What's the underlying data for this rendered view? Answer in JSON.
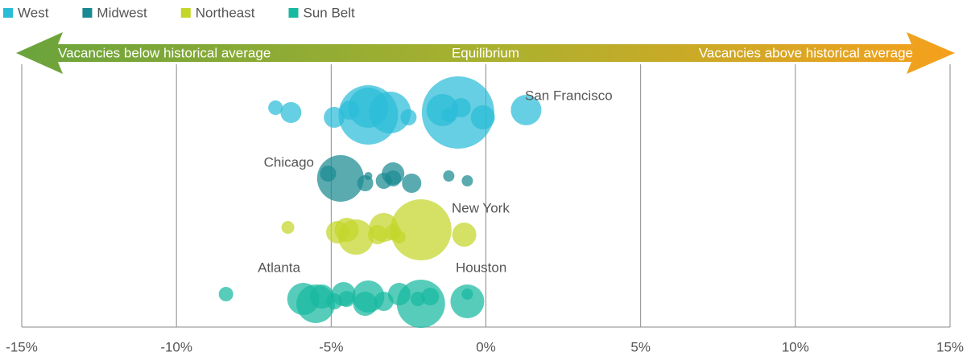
{
  "chart_data": {
    "type": "bubble",
    "arrow_labels": [
      "Vacancies below historical average",
      "Equilibrium",
      "Vacancies above historical average"
    ],
    "annotations": [
      "San Francisco",
      "Chicago",
      "New York",
      "Atlanta",
      "Houston"
    ],
    "xlim": [
      -15,
      15
    ],
    "xticks": [
      {
        "value": -15,
        "label": "-15%"
      },
      {
        "value": -10,
        "label": "-10%"
      },
      {
        "value": -5,
        "label": "-5%"
      },
      {
        "value": 0,
        "label": "0%"
      },
      {
        "value": 5,
        "label": "5%"
      },
      {
        "value": 10,
        "label": "10%"
      },
      {
        "value": 15,
        "label": "15%"
      }
    ],
    "grid": true,
    "legend": "top-left",
    "series": [
      {
        "name": "West",
        "color": "#2bbcd8",
        "x": [
          -6.8,
          -6.3,
          -4.9,
          -4.4,
          -3.8,
          -3.8,
          -3.1,
          -2.5,
          -1.4,
          -1.2,
          -0.8,
          -0.9,
          -0.1,
          1.3
        ],
        "sizes": [
          9,
          13,
          13,
          12,
          37,
          25,
          26,
          10,
          20,
          9,
          12,
          45,
          15,
          19
        ]
      },
      {
        "name": "Midwest",
        "color": "#1a8a92",
        "x": [
          -5.1,
          -4.7,
          -3.9,
          -3.8,
          -3.3,
          -3.0,
          -3.0,
          -2.4,
          -1.2,
          -0.6
        ],
        "sizes": [
          10,
          29,
          10,
          5,
          10,
          14,
          10,
          12,
          7,
          7
        ]
      },
      {
        "name": "Northeast",
        "color": "#c4d62a",
        "x": [
          -6.4,
          -4.8,
          -4.2,
          -4.5,
          -3.5,
          -3.3,
          -3.0,
          -2.8,
          -2.1,
          -0.7
        ],
        "sizes": [
          8,
          14,
          22,
          15,
          12,
          18,
          10,
          8,
          38,
          15
        ]
      },
      {
        "name": "Sun Belt",
        "color": "#17b9a0",
        "x": [
          -8.4,
          -5.9,
          -5.5,
          -5.3,
          -4.9,
          -4.6,
          -4.5,
          -3.9,
          -3.8,
          -3.3,
          -2.8,
          -2.2,
          -2.1,
          -1.8,
          -0.6,
          -0.6
        ],
        "sizes": [
          9,
          20,
          24,
          15,
          10,
          15,
          10,
          15,
          20,
          12,
          14,
          9,
          30,
          11,
          21,
          7
        ]
      }
    ]
  }
}
